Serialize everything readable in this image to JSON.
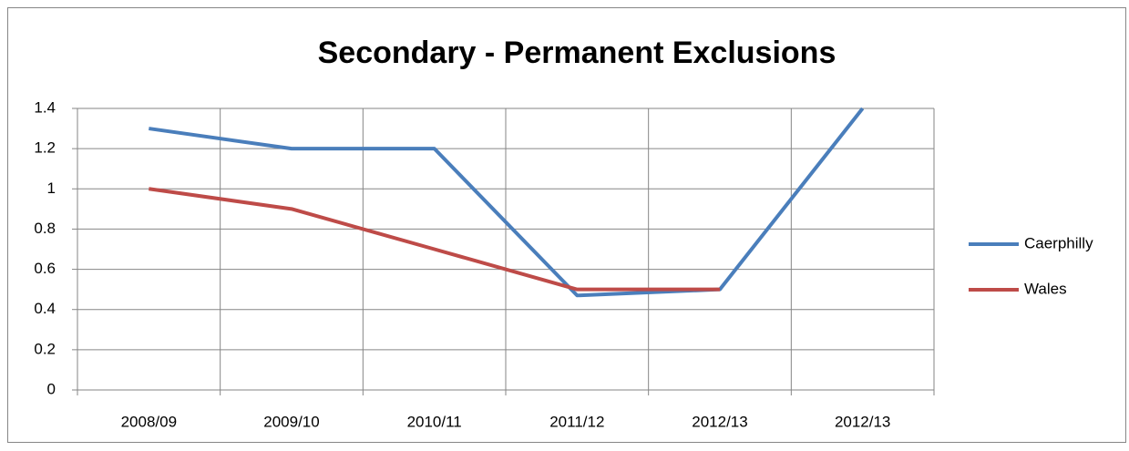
{
  "chart_data": {
    "type": "line",
    "title": "Secondary - Permanent Exclusions",
    "categories": [
      "2008/09",
      "2009/10",
      "2010/11",
      "2011/12",
      "2012/13",
      "2012/13"
    ],
    "series": [
      {
        "name": "Caerphilly",
        "color": "#4a7ebb",
        "values": [
          1.3,
          1.2,
          1.2,
          0.47,
          0.5,
          1.4
        ]
      },
      {
        "name": "Wales",
        "color": "#be4b48",
        "values": [
          1.0,
          0.9,
          0.7,
          0.5,
          0.5,
          null
        ]
      }
    ],
    "ylim": [
      0,
      1.4
    ],
    "yticks": [
      0,
      0.2,
      0.4,
      0.6,
      0.8,
      1,
      1.2,
      1.4
    ],
    "grid": true,
    "legend": "right"
  }
}
